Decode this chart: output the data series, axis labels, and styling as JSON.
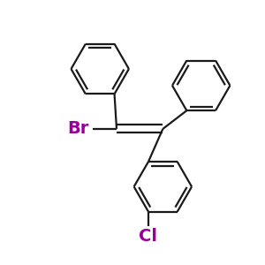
{
  "bg_color": "#ffffff",
  "bond_color": "#1a1a1a",
  "br_color": "#990099",
  "cl_color": "#990099",
  "line_width": 1.6,
  "font_size_atom": 14,
  "figsize": [
    3.0,
    3.0
  ],
  "dpi": 100,
  "xlim": [
    -1.6,
    1.6
  ],
  "ylim": [
    -1.8,
    1.8
  ]
}
